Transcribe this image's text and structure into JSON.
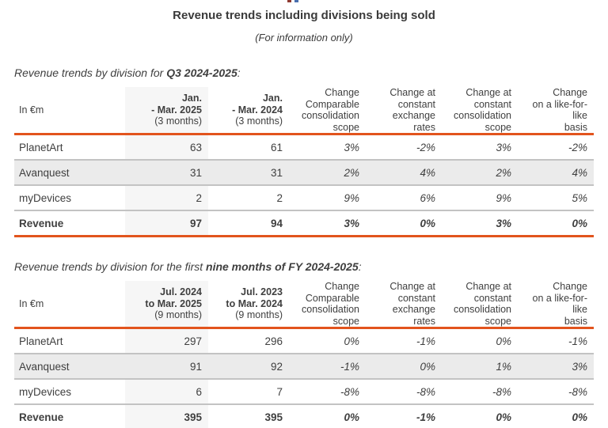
{
  "header": {
    "title": "Revenue trends including divisions being sold",
    "subtitle": "(For information only)"
  },
  "change_columns": [
    {
      "l1": "Change",
      "l2": "Comparable",
      "l3": "consolidation",
      "l4": "scope"
    },
    {
      "l1": "Change at",
      "l2": "constant",
      "l3": "exchange rates"
    },
    {
      "l1": "Change at",
      "l2": "constant",
      "l3": "consolidation",
      "l4": "scope"
    },
    {
      "l1": "Change",
      "l2": "on a like-for-like",
      "l3": "basis"
    }
  ],
  "section_q3": {
    "heading": {
      "prefix": "Revenue trends by division for ",
      "bold": "Q3 2024-2025",
      "suffix": ":"
    },
    "table": {
      "unit_label": "In €m",
      "col_period1": {
        "l1": "Jan.",
        "l2": "- Mar. 2025",
        "l3": "(3 months)"
      },
      "col_period2": {
        "l1": "Jan.",
        "l2": "- Mar. 2024",
        "l3": "(3 months)"
      },
      "rows": [
        {
          "name": "PlanetArt",
          "p1": "63",
          "p2": "61",
          "c1": "3%",
          "c2": "-2%",
          "c3": "3%",
          "c4": "-2%"
        },
        {
          "name": "Avanquest",
          "p1": "31",
          "p2": "31",
          "c1": "2%",
          "c2": "4%",
          "c3": "2%",
          "c4": "4%"
        },
        {
          "name": "myDevices",
          "p1": "2",
          "p2": "2",
          "c1": "9%",
          "c2": "6%",
          "c3": "9%",
          "c4": "5%"
        },
        {
          "name": "Revenue",
          "p1": "97",
          "p2": "94",
          "c1": "3%",
          "c2": "0%",
          "c3": "3%",
          "c4": "0%"
        }
      ]
    }
  },
  "section_9m": {
    "heading": {
      "prefix": "Revenue trends by division for the first ",
      "bold": "nine months of FY 2024-2025",
      "suffix": ":"
    },
    "table": {
      "unit_label": "In €m",
      "col_period1": {
        "l1": "Jul. 2024",
        "l2": "to Mar. 2025",
        "l3": "(9 months)"
      },
      "col_period2": {
        "l1": "Jul. 2023",
        "l2": "to Mar. 2024",
        "l3": "(9 months)"
      },
      "rows": [
        {
          "name": "PlanetArt",
          "p1": "297",
          "p2": "296",
          "c1": "0%",
          "c2": "-1%",
          "c3": "0%",
          "c4": "-1%"
        },
        {
          "name": "Avanquest",
          "p1": "91",
          "p2": "92",
          "c1": "-1%",
          "c2": "0%",
          "c3": "1%",
          "c4": "3%"
        },
        {
          "name": "myDevices",
          "p1": "6",
          "p2": "7",
          "c1": "-8%",
          "c2": "-8%",
          "c3": "-8%",
          "c4": "-8%"
        },
        {
          "name": "Revenue",
          "p1": "395",
          "p2": "395",
          "c1": "0%",
          "c2": "-1%",
          "c3": "0%",
          "c4": "0%"
        }
      ]
    }
  },
  "colors": {
    "accent_orange": "#e2541d",
    "row_shade": "#ebebeb",
    "column_shade": "#f6f6f6",
    "separator_gray": "#c3c3c3",
    "text": "#3f3f3f"
  }
}
